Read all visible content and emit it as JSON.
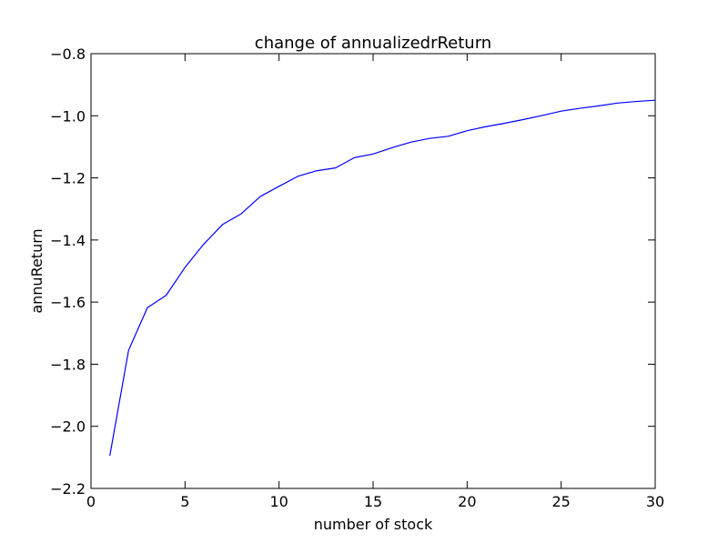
{
  "chart_data": {
    "type": "line",
    "title": "change of annualizedrReturn",
    "xlabel": "number of stock",
    "ylabel": "annuReturn",
    "xlim": [
      0,
      30
    ],
    "ylim": [
      -2.2,
      -0.8
    ],
    "xticks": [
      0,
      5,
      10,
      15,
      20,
      25,
      30
    ],
    "xtick_labels": [
      "0",
      "5",
      "10",
      "15",
      "20",
      "25",
      "30"
    ],
    "yticks": [
      -2.2,
      -2.0,
      -1.8,
      -1.6,
      -1.4,
      -1.2,
      -1.0,
      -0.8
    ],
    "ytick_labels": [
      "−2.2",
      "−2.0",
      "−1.8",
      "−1.6",
      "−1.4",
      "−1.2",
      "−1.0",
      "−0.8"
    ],
    "grid": false,
    "series": [
      {
        "color": "#0000ff",
        "x": [
          1,
          2,
          3,
          4,
          5,
          6,
          7,
          8,
          9,
          10,
          11,
          12,
          13,
          14,
          15,
          16,
          17,
          18,
          19,
          20,
          21,
          22,
          23,
          24,
          25,
          26,
          27,
          28,
          29,
          30
        ],
        "y": [
          -2.095,
          -1.755,
          -1.618,
          -1.578,
          -1.488,
          -1.413,
          -1.35,
          -1.315,
          -1.26,
          -1.227,
          -1.195,
          -1.177,
          -1.168,
          -1.135,
          -1.123,
          -1.103,
          -1.085,
          -1.073,
          -1.066,
          -1.048,
          -1.035,
          -1.024,
          -1.012,
          -0.999,
          -0.985,
          -0.976,
          -0.968,
          -0.959,
          -0.954,
          -0.95
        ]
      }
    ]
  }
}
